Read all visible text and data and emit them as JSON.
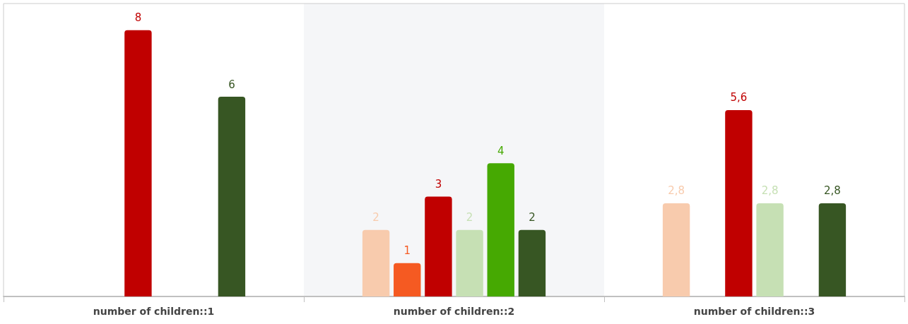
{
  "chart_data": {
    "type": "bar",
    "categories": [
      "number of children::1",
      "number of children::2",
      "number of children::3"
    ],
    "series": [
      {
        "color": "#f8cbad",
        "values": [
          null,
          2,
          2.8
        ],
        "value_labels": [
          null,
          "2",
          "2,8"
        ]
      },
      {
        "color": "#f55a22",
        "values": [
          null,
          1,
          null
        ],
        "value_labels": [
          null,
          "1",
          null
        ]
      },
      {
        "color": "#c00000",
        "values": [
          8,
          3,
          5.6
        ],
        "value_labels": [
          "8",
          "3",
          "5,6"
        ]
      },
      {
        "color": "#c6e0b4",
        "values": [
          null,
          2,
          2.8
        ],
        "value_labels": [
          null,
          "2",
          "2,8"
        ]
      },
      {
        "color": "#46a902",
        "values": [
          null,
          4,
          null
        ],
        "value_labels": [
          null,
          "4",
          null
        ]
      },
      {
        "color": "#375623",
        "values": [
          6,
          2,
          2.8
        ],
        "value_labels": [
          "6",
          "2",
          "2,8"
        ]
      }
    ],
    "ylim": [
      0,
      8.8
    ],
    "tick_labels": "x",
    "bands": [
      {
        "axis": "x",
        "from": "number of children::2",
        "to": "number of children::2",
        "color": "#f5f6f8"
      }
    ]
  }
}
